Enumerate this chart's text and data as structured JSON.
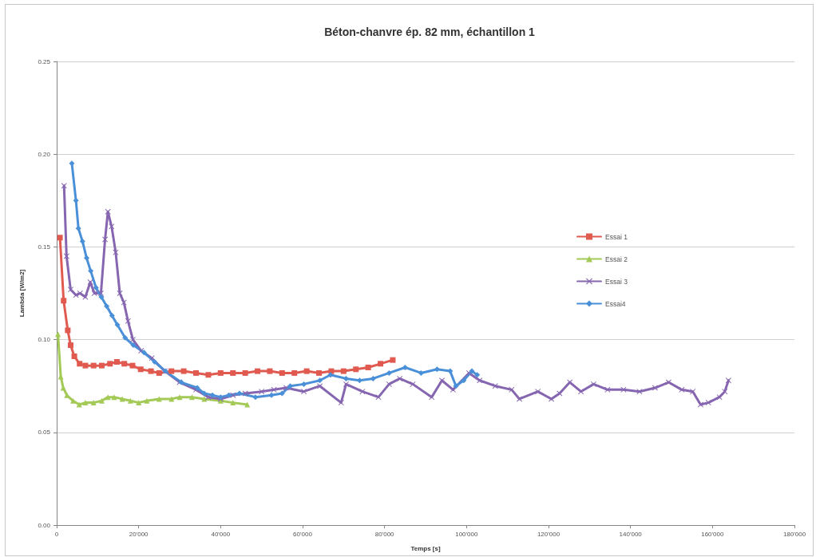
{
  "chart_data": {
    "type": "line",
    "title": "Béton-chanvre ép. 82 mm, échantillon 1",
    "xlabel": "Temps [s]",
    "ylabel": "Lambda [W/m2]",
    "xlim": [
      0,
      180000
    ],
    "xticks": [
      0,
      {
        "value": 20000,
        "label": "20'000"
      },
      {
        "value": 40000,
        "label": "40'000"
      },
      {
        "value": 60000,
        "label": "60'000"
      },
      {
        "value": 80000,
        "label": "80'000"
      },
      {
        "value": 100000,
        "label": "100'000"
      },
      {
        "value": 120000,
        "label": "120'000"
      },
      {
        "value": 140000,
        "label": "140'000"
      },
      {
        "value": 160000,
        "label": "160'000"
      },
      {
        "value": 180000,
        "label": "180'000"
      }
    ],
    "ylim": [
      0,
      0.25
    ],
    "yticks": [
      {
        "value": 0,
        "label": "0.00"
      },
      0.05,
      {
        "value": 0.1,
        "label": "0.10"
      },
      0.15,
      {
        "value": 0.2,
        "label": "0.20"
      },
      0.25
    ],
    "grid": "y",
    "legend": "right",
    "line_style": "solid",
    "series": [
      {
        "name": "Essai 1",
        "color": "#e05a50",
        "marker": "square",
        "x": [
          800,
          1700,
          2700,
          3400,
          4300,
          5600,
          7000,
          9000,
          11000,
          13000,
          14700,
          16500,
          18500,
          20500,
          23000,
          25000,
          28000,
          31000,
          34000,
          37000,
          40000,
          43000,
          46000,
          49000,
          52000,
          55000,
          58000,
          61000,
          64000,
          67000,
          70000,
          73000,
          76000,
          79000,
          82000
        ],
        "values": [
          0.155,
          0.121,
          0.105,
          0.097,
          0.091,
          0.087,
          0.086,
          0.086,
          0.086,
          0.087,
          0.088,
          0.087,
          0.086,
          0.084,
          0.083,
          0.082,
          0.083,
          0.083,
          0.082,
          0.081,
          0.082,
          0.082,
          0.082,
          0.083,
          0.083,
          0.082,
          0.082,
          0.083,
          0.082,
          0.083,
          0.083,
          0.084,
          0.085,
          0.087,
          0.089
        ]
      },
      {
        "name": "Essai 2",
        "color": "#a3c957",
        "marker": "triangle",
        "x": [
          300,
          1000,
          1600,
          2500,
          4000,
          5500,
          7000,
          9000,
          11000,
          12500,
          14000,
          16000,
          18000,
          20000,
          22000,
          25000,
          28000,
          30000,
          33000,
          36000,
          40000,
          43000,
          46500
        ],
        "values": [
          0.103,
          0.08,
          0.074,
          0.07,
          0.067,
          0.065,
          0.066,
          0.066,
          0.067,
          0.069,
          0.069,
          0.068,
          0.067,
          0.066,
          0.067,
          0.068,
          0.068,
          0.069,
          0.069,
          0.068,
          0.067,
          0.066,
          0.065
        ]
      },
      {
        "name": "Essai 3",
        "color": "#8666b0",
        "marker": "cross",
        "x": [
          1800,
          2400,
          3400,
          4700,
          5700,
          7000,
          8200,
          9200,
          10800,
          11800,
          12500,
          13400,
          14400,
          15400,
          16400,
          17400,
          18600,
          20600,
          23200,
          26400,
          30000,
          34000,
          37000,
          40000,
          43000,
          46000,
          50000,
          53000,
          56000,
          60300,
          64200,
          69400,
          70600,
          74600,
          78500,
          81100,
          83700,
          86900,
          91500,
          94000,
          96700,
          100600,
          103200,
          107000,
          111000,
          112900,
          117400,
          120700,
          122700,
          125200,
          127900,
          131000,
          134400,
          138300,
          142200,
          146000,
          149300,
          152500,
          155200,
          157100,
          159000,
          161700,
          163000,
          163900
        ],
        "values": [
          0.183,
          0.145,
          0.127,
          0.124,
          0.125,
          0.123,
          0.131,
          0.125,
          0.125,
          0.154,
          0.169,
          0.161,
          0.147,
          0.125,
          0.12,
          0.11,
          0.1,
          0.094,
          0.09,
          0.083,
          0.077,
          0.073,
          0.069,
          0.068,
          0.07,
          0.071,
          0.072,
          0.073,
          0.074,
          0.072,
          0.075,
          0.066,
          0.076,
          0.072,
          0.069,
          0.076,
          0.079,
          0.076,
          0.069,
          0.078,
          0.073,
          0.082,
          0.078,
          0.075,
          0.073,
          0.068,
          0.072,
          0.068,
          0.071,
          0.077,
          0.072,
          0.076,
          0.073,
          0.073,
          0.072,
          0.074,
          0.077,
          0.073,
          0.072,
          0.065,
          0.066,
          0.069,
          0.072,
          0.078
        ]
      },
      {
        "name": "Essai4",
        "color": "#4a90d9",
        "marker": "diamond",
        "x": [
          3700,
          4700,
          5300,
          6300,
          7300,
          8300,
          9600,
          10900,
          12200,
          13500,
          14800,
          16700,
          18700,
          21300,
          23900,
          26500,
          30400,
          34300,
          36000,
          38000,
          40000,
          42000,
          44600,
          48500,
          52400,
          55000,
          57000,
          60300,
          64200,
          66800,
          70600,
          73900,
          77200,
          81100,
          85000,
          88900,
          92800,
          96000,
          97400,
          99300,
          101300,
          102600
        ],
        "values": [
          0.195,
          0.175,
          0.16,
          0.153,
          0.144,
          0.137,
          0.128,
          0.123,
          0.118,
          0.113,
          0.108,
          0.101,
          0.097,
          0.093,
          0.088,
          0.083,
          0.077,
          0.074,
          0.071,
          0.07,
          0.069,
          0.07,
          0.071,
          0.069,
          0.07,
          0.071,
          0.075,
          0.076,
          0.078,
          0.081,
          0.079,
          0.078,
          0.079,
          0.082,
          0.085,
          0.082,
          0.084,
          0.083,
          0.075,
          0.078,
          0.083,
          0.081
        ]
      }
    ]
  }
}
